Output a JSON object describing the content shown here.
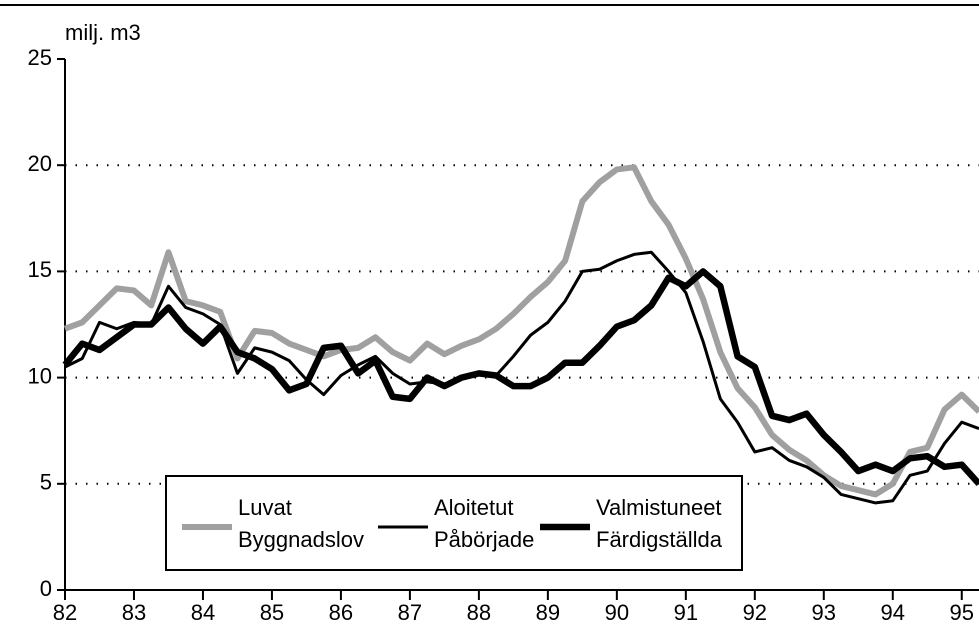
{
  "chart_data": {
    "type": "line",
    "ylabel": "milj. m3",
    "x": [
      82,
      82.25,
      82.5,
      82.75,
      83,
      83.25,
      83.5,
      83.75,
      84,
      84.25,
      84.5,
      84.75,
      85,
      85.25,
      85.5,
      85.75,
      86,
      86.25,
      86.5,
      86.75,
      87,
      87.25,
      87.5,
      87.75,
      88,
      88.25,
      88.5,
      88.75,
      89,
      89.25,
      89.5,
      89.75,
      90,
      90.25,
      90.5,
      90.75,
      91,
      91.25,
      91.5,
      91.75,
      92,
      92.25,
      92.5,
      92.75,
      93,
      93.25,
      93.5,
      93.75,
      94,
      94.25,
      94.5,
      94.75,
      95,
      95.25
    ],
    "series": [
      {
        "name": [
          "Luvat",
          "Byggnadslov"
        ],
        "color": "#a0a0a0",
        "width": 6,
        "values": [
          12.3,
          12.6,
          13.4,
          14.2,
          14.1,
          13.4,
          15.9,
          13.6,
          13.4,
          13.1,
          10.9,
          12.2,
          12.1,
          11.6,
          11.3,
          11.0,
          11.3,
          11.4,
          11.9,
          11.2,
          10.8,
          11.6,
          11.1,
          11.5,
          11.8,
          12.3,
          13.0,
          13.8,
          14.5,
          15.5,
          18.3,
          19.2,
          19.8,
          19.9,
          18.3,
          17.2,
          15.6,
          13.7,
          11.2,
          9.5,
          8.6,
          7.3,
          6.6,
          6.1,
          5.4,
          4.9,
          4.7,
          4.5,
          5.0,
          6.5,
          6.7,
          8.5,
          9.2,
          8.4
        ]
      },
      {
        "name": [
          "Aloitetut",
          "Påbörjade"
        ],
        "color": "#000000",
        "width": 3,
        "values": [
          10.5,
          10.9,
          12.6,
          12.3,
          12.6,
          12.5,
          14.3,
          13.3,
          13.0,
          12.5,
          10.2,
          11.4,
          11.2,
          10.8,
          9.9,
          9.2,
          10.1,
          10.6,
          11.0,
          10.2,
          9.7,
          9.8,
          9.7,
          10.0,
          10.2,
          10.1,
          11.0,
          12.0,
          12.6,
          13.6,
          15.0,
          15.1,
          15.5,
          15.8,
          15.9,
          15.0,
          14.0,
          11.7,
          9.0,
          7.9,
          6.5,
          6.7,
          6.1,
          5.8,
          5.3,
          4.5,
          4.3,
          4.1,
          4.2,
          5.4,
          5.6,
          6.9,
          7.9,
          7.6
        ]
      },
      {
        "name": [
          "Valmistuneet",
          "Färdigställda"
        ],
        "color": "#000000",
        "width": 6.5,
        "values": [
          10.6,
          11.6,
          11.3,
          11.9,
          12.5,
          12.5,
          13.3,
          12.3,
          11.6,
          12.4,
          11.2,
          10.9,
          10.4,
          9.4,
          9.7,
          11.4,
          11.5,
          10.2,
          10.8,
          9.1,
          9.0,
          10.0,
          9.6,
          10.0,
          10.2,
          10.1,
          9.6,
          9.6,
          10.0,
          10.7,
          10.7,
          11.5,
          12.4,
          12.7,
          13.4,
          14.7,
          14.3,
          15.0,
          14.3,
          11.0,
          10.5,
          8.2,
          8.0,
          8.3,
          7.3,
          6.5,
          5.6,
          5.9,
          5.6,
          6.2,
          6.3,
          5.8,
          5.9,
          5.0
        ]
      }
    ],
    "xlim": [
      82,
      95.25
    ],
    "xticks": [
      82,
      83,
      84,
      85,
      86,
      87,
      88,
      89,
      90,
      91,
      92,
      93,
      94,
      95
    ],
    "ylim": [
      0,
      25
    ],
    "yticks": [
      0,
      5,
      10,
      15,
      20,
      25
    ],
    "grid": true
  }
}
